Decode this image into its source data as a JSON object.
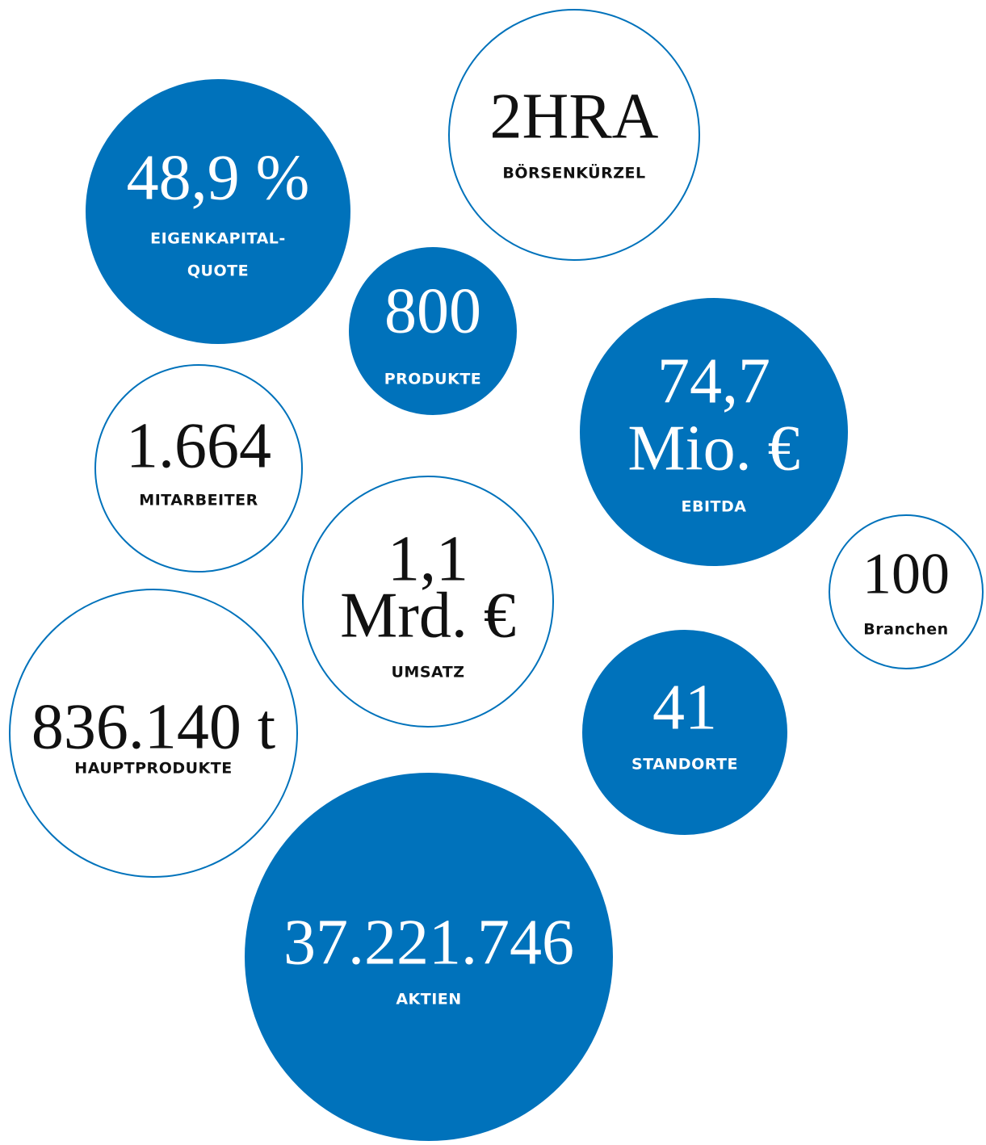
{
  "bubbles": [
    {
      "value": [
        "48,9 %"
      ],
      "label": [
        "EIGENKAPITAL-",
        "QUOTE"
      ]
    },
    {
      "value": [
        "2HRA"
      ],
      "label": [
        "BÖRSENKÜRZEL"
      ]
    },
    {
      "value": [
        "800"
      ],
      "label": [
        "PRODUKTE"
      ]
    },
    {
      "value": [
        "74,7",
        "Mio. €"
      ],
      "label": [
        "EBITDA"
      ]
    },
    {
      "value": [
        "1.664"
      ],
      "label": [
        "MITARBEITER"
      ]
    },
    {
      "value": [
        "1,1",
        "Mrd. €"
      ],
      "label": [
        "UMSATZ"
      ]
    },
    {
      "value": [
        "100"
      ],
      "label": [
        "Branchen"
      ]
    },
    {
      "value": [
        "836.140 t"
      ],
      "label": [
        "HAUPTPRODUKTE"
      ]
    },
    {
      "value": [
        "41"
      ],
      "label": [
        "STANDORTE"
      ]
    },
    {
      "value": [
        "37.221.746"
      ],
      "label": [
        "AKTIEN"
      ]
    }
  ]
}
